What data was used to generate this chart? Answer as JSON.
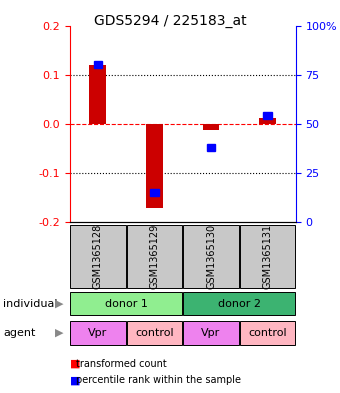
{
  "title": "GDS5294 / 225183_at",
  "samples": [
    "GSM1365128",
    "GSM1365129",
    "GSM1365130",
    "GSM1365131"
  ],
  "red_values": [
    0.12,
    -0.172,
    -0.012,
    0.012
  ],
  "blue_percentiles": [
    80,
    15,
    38,
    54
  ],
  "ylim_left": [
    -0.2,
    0.2
  ],
  "ylim_right": [
    0,
    100
  ],
  "yticks_left": [
    -0.2,
    -0.1,
    0.0,
    0.1,
    0.2
  ],
  "yticks_right": [
    0,
    25,
    50,
    75,
    100
  ],
  "yticklabels_right": [
    "0",
    "25",
    "50",
    "75",
    "100%"
  ],
  "agent_row": [
    "Vpr",
    "control",
    "Vpr",
    "control"
  ],
  "individual_label": "individual",
  "agent_label": "agent",
  "legend_red": "transformed count",
  "legend_blue": "percentile rank within the sample",
  "color_donor1": "#90EE90",
  "color_donor2": "#3CB371",
  "color_vpr": "#EE82EE",
  "color_control": "#FFB6C1",
  "color_gsm_bg": "#C8C8C8",
  "red_bar_width": 0.3,
  "blue_bar_width": 0.15,
  "blue_bar_height": 0.014
}
